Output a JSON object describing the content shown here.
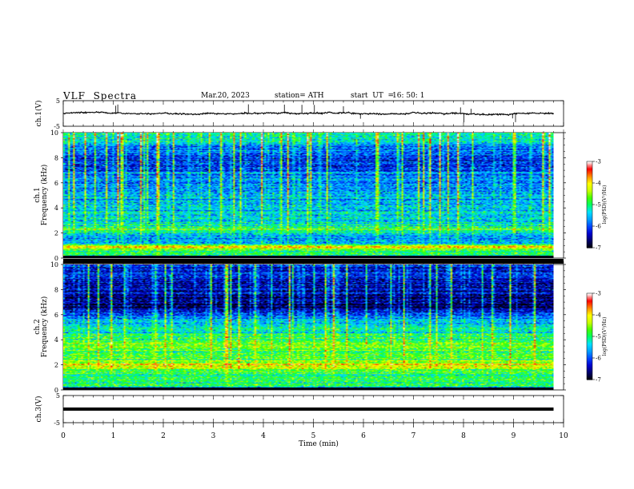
{
  "header": {
    "title": "VLF  Spectra",
    "date": "Mar.20, 2023",
    "station": "station= ATH",
    "start_label": "start  UT  =",
    "start_time": "16: 50: 1"
  },
  "colors": {
    "spectrum": [
      "#000000",
      "#000066",
      "#0000cc",
      "#0044ff",
      "#00a0ff",
      "#00e0ff",
      "#00ff66",
      "#44ff00",
      "#ccff00",
      "#ffff00",
      "#ff8800",
      "#ff0000",
      "#ffffff"
    ]
  },
  "chart_data": [
    {
      "id": "ch1-waveform",
      "type": "line",
      "ylabel": "ch.1(V)",
      "ylim": [
        -5,
        5
      ],
      "yticks": [
        "5",
        "-5"
      ],
      "xlim": [
        0,
        10
      ],
      "data_span_min": [
        0,
        9.8
      ],
      "baseline_v": 0,
      "noise_amplitude_v": 0.5,
      "spikes_min": [
        1.05,
        1.09,
        3.7,
        4.42,
        4.77,
        5.02,
        5.6,
        5.94,
        7.94,
        8.01,
        8.15,
        8.98,
        9.04
      ]
    },
    {
      "id": "ch1-spectrogram",
      "type": "heatmap",
      "ylabel": "ch.1",
      "ylabel2": "Frequency  (kHz)",
      "ylim": [
        0,
        10
      ],
      "yticks": [
        "0",
        "2",
        "4",
        "6",
        "8",
        "10"
      ],
      "xlim": [
        0,
        10
      ],
      "data_span_min": [
        0,
        9.8
      ],
      "colorbar": {
        "label": "log(PSD)(V²/Hz)",
        "range": [
          -7,
          -3
        ],
        "ticks": [
          "-3",
          "-4",
          "-5",
          "-6",
          "-7"
        ]
      },
      "log_psd_profile": [
        {
          "f": 0.0,
          "v": -6.8
        },
        {
          "f": 0.25,
          "v": -4.8
        },
        {
          "f": 0.5,
          "v": -5.2
        },
        {
          "f": 0.9,
          "v": -3.8
        },
        {
          "f": 1.2,
          "v": -5.6
        },
        {
          "f": 1.6,
          "v": -5.8
        },
        {
          "f": 2.0,
          "v": -5.3
        },
        {
          "f": 2.3,
          "v": -4.6
        },
        {
          "f": 2.8,
          "v": -5.5
        },
        {
          "f": 3.5,
          "v": -5.4
        },
        {
          "f": 4.5,
          "v": -5.6
        },
        {
          "f": 5.5,
          "v": -5.7
        },
        {
          "f": 6.5,
          "v": -5.8
        },
        {
          "f": 7.5,
          "v": -6.1
        },
        {
          "f": 8.5,
          "v": -6.0
        },
        {
          "f": 9.5,
          "v": -5.3
        },
        {
          "f": 10.0,
          "v": -5.0
        }
      ]
    },
    {
      "id": "ch2-spectrogram",
      "type": "heatmap",
      "ylabel": "ch.2",
      "ylabel2": "Frequency  (kHz)",
      "ylim": [
        0,
        10
      ],
      "yticks": [
        "0",
        "2",
        "4",
        "6",
        "8",
        "10"
      ],
      "xlim": [
        0,
        10
      ],
      "data_span_min": [
        0,
        9.8
      ],
      "colorbar": {
        "label": "log(PSD)(V²/Hz)",
        "range": [
          -7,
          -3
        ],
        "ticks": [
          "-3",
          "-4",
          "-5",
          "-6",
          "-7"
        ]
      },
      "log_psd_profile": [
        {
          "f": 0.0,
          "v": -6.9
        },
        {
          "f": 0.3,
          "v": -5.1
        },
        {
          "f": 0.8,
          "v": -4.8
        },
        {
          "f": 1.3,
          "v": -5.0
        },
        {
          "f": 2.0,
          "v": -4.0
        },
        {
          "f": 2.4,
          "v": -4.8
        },
        {
          "f": 3.0,
          "v": -4.9
        },
        {
          "f": 3.6,
          "v": -4.6
        },
        {
          "f": 4.5,
          "v": -5.1
        },
        {
          "f": 5.5,
          "v": -5.6
        },
        {
          "f": 6.2,
          "v": -6.3
        },
        {
          "f": 7.0,
          "v": -6.8
        },
        {
          "f": 8.0,
          "v": -6.4
        },
        {
          "f": 9.0,
          "v": -6.3
        },
        {
          "f": 10.0,
          "v": -6.2
        }
      ]
    },
    {
      "id": "ch3-waveform",
      "type": "line",
      "ylabel": "ch.3(V)",
      "ylim": [
        -5,
        5
      ],
      "yticks": [
        "5",
        "-5"
      ],
      "xlim": [
        0,
        10
      ],
      "data_span_min": [
        0,
        9.8
      ],
      "baseline_v": 0
    }
  ],
  "xaxis": {
    "label": "Time  (min)",
    "ticks": [
      "0",
      "1",
      "2",
      "3",
      "4",
      "5",
      "6",
      "7",
      "8",
      "9",
      "10"
    ]
  }
}
